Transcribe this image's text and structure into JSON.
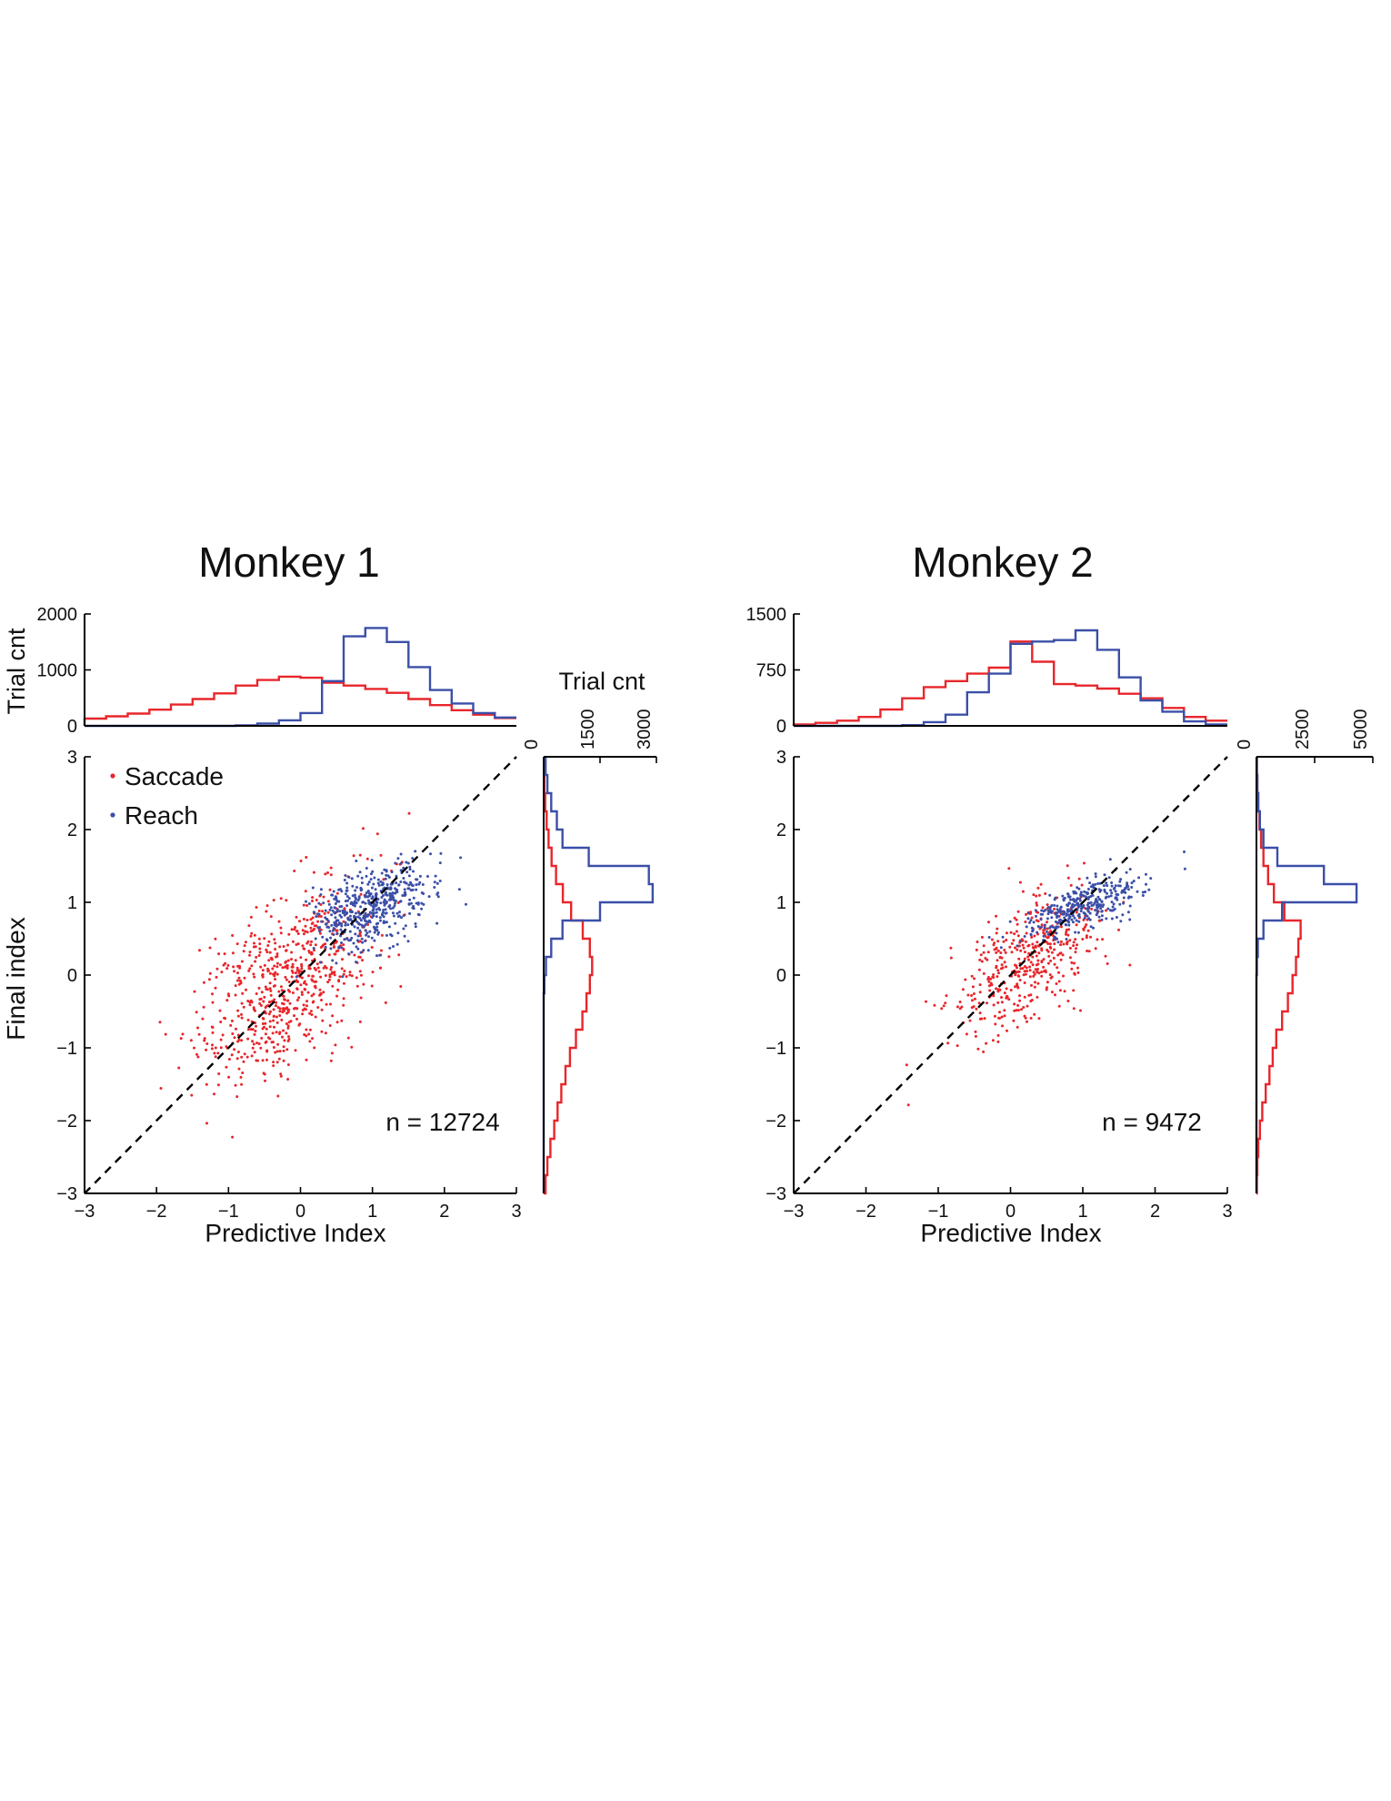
{
  "colors": {
    "saccade": "#e8262b",
    "reach": "#3b4fa8",
    "axis": "#000000",
    "diagonal": "#000000"
  },
  "panels": [
    {
      "title": "Monkey 1",
      "n_label": "n = 12724",
      "legend": [
        "Saccade",
        "Reach"
      ],
      "scatter_xlabel": "Predictive Index",
      "scatter_ylabel": "Final index",
      "top_hist_ylabel": "Trial cnt",
      "right_hist_label": "Trial cnt"
    },
    {
      "title": "Monkey 2",
      "n_label": "n = 9472",
      "legend": [],
      "scatter_xlabel": "Predictive Index",
      "scatter_ylabel": "",
      "top_hist_ylabel": "",
      "right_hist_label": ""
    }
  ],
  "chart_data": [
    {
      "type": "scatter",
      "title": "Monkey 1",
      "xlabel": "Predictive Index",
      "ylabel": "Final index",
      "xlim": [
        -3,
        3
      ],
      "ylim": [
        -3,
        3
      ],
      "xticks": [
        -3,
        -2,
        -1,
        0,
        1,
        2,
        3
      ],
      "yticks": [
        -3,
        -2,
        -1,
        0,
        1,
        2,
        3
      ],
      "annotation": "n = 12724",
      "diagonal": "y = x (dashed)",
      "legend_position": "top-left",
      "series": [
        {
          "name": "Saccade",
          "color": "#e8262b",
          "n_points": 700,
          "center": [
            -0.2,
            -0.1
          ],
          "spread": [
            1.15,
            0.95
          ]
        },
        {
          "name": "Reach",
          "color": "#3b4fa8",
          "n_points": 500,
          "center": [
            1.0,
            0.95
          ],
          "spread": [
            0.75,
            0.45
          ]
        }
      ],
      "top_histogram": {
        "ylabel": "Trial cnt",
        "ylim": [
          0,
          2000
        ],
        "yticks": [
          0,
          1000,
          2000
        ],
        "bin_edges": [
          -3,
          -2.7,
          -2.4,
          -2.1,
          -1.8,
          -1.5,
          -1.2,
          -0.9,
          -0.6,
          -0.3,
          0,
          0.3,
          0.6,
          0.9,
          1.2,
          1.5,
          1.8,
          2.1,
          2.4,
          2.7,
          3
        ],
        "series": [
          {
            "name": "Saccade",
            "counts": [
              130,
              170,
              220,
              290,
              380,
              480,
              580,
              720,
              820,
              880,
              860,
              770,
              720,
              660,
              590,
              480,
              370,
              280,
              200,
              140
            ]
          },
          {
            "name": "Reach",
            "counts": [
              0,
              0,
              0,
              0,
              0,
              0,
              0,
              10,
              40,
              100,
              230,
              800,
              1600,
              1750,
              1500,
              1050,
              640,
              400,
              230,
              150
            ]
          }
        ]
      },
      "right_histogram": {
        "xlabel": "Trial cnt",
        "xlim": [
          0,
          3000
        ],
        "xticks": [
          0,
          1500,
          3000
        ],
        "bin_edges": [
          -3,
          -2.75,
          -2.5,
          -2.25,
          -2,
          -1.75,
          -1.5,
          -1.25,
          -1,
          -0.75,
          -0.5,
          -0.25,
          0,
          0.25,
          0.5,
          0.75,
          1,
          1.25,
          1.5,
          1.75,
          2,
          2.25,
          2.5,
          2.75,
          3
        ],
        "series": [
          {
            "name": "Saccade",
            "counts": [
              50,
              100,
              180,
              280,
              370,
              470,
              580,
              700,
              860,
              1030,
              1140,
              1230,
              1290,
              1230,
              1040,
              730,
              510,
              330,
              210,
              130,
              80,
              40,
              20,
              10
            ]
          },
          {
            "name": "Reach",
            "counts": [
              0,
              0,
              0,
              0,
              0,
              0,
              0,
              0,
              0,
              0,
              0,
              20,
              60,
              200,
              500,
              1500,
              2900,
              2800,
              1200,
              500,
              350,
              200,
              100,
              50
            ]
          }
        ]
      }
    },
    {
      "type": "scatter",
      "title": "Monkey 2",
      "xlabel": "Predictive Index",
      "ylabel": "",
      "xlim": [
        -3,
        3
      ],
      "ylim": [
        -3,
        3
      ],
      "xticks": [
        -3,
        -2,
        -1,
        0,
        1,
        2,
        3
      ],
      "yticks": [
        -3,
        -2,
        -1,
        0,
        1,
        2,
        3
      ],
      "annotation": "n = 9472",
      "diagonal": "y = x (dashed)",
      "series": [
        {
          "name": "Saccade",
          "color": "#e8262b",
          "n_points": 450,
          "center": [
            0.2,
            0.15
          ],
          "spread": [
            0.9,
            0.65
          ]
        },
        {
          "name": "Reach",
          "color": "#3b4fa8",
          "n_points": 350,
          "center": [
            1.0,
            0.95
          ],
          "spread": [
            0.75,
            0.25
          ]
        }
      ],
      "top_histogram": {
        "ylabel": "",
        "ylim": [
          0,
          1500
        ],
        "yticks": [
          0,
          750,
          1500
        ],
        "bin_edges": [
          -3,
          -2.7,
          -2.4,
          -2.1,
          -1.8,
          -1.5,
          -1.2,
          -0.9,
          -0.6,
          -0.3,
          0,
          0.3,
          0.6,
          0.9,
          1.2,
          1.5,
          1.8,
          2.1,
          2.4,
          2.7,
          3
        ],
        "series": [
          {
            "name": "Saccade",
            "counts": [
              20,
              40,
              70,
              120,
              220,
              370,
              520,
              600,
              700,
              780,
              1130,
              860,
              560,
              540,
              500,
              430,
              370,
              240,
              120,
              70
            ]
          },
          {
            "name": "Reach",
            "counts": [
              0,
              0,
              0,
              0,
              0,
              10,
              50,
              150,
              450,
              700,
              1100,
              1130,
              1150,
              1280,
              1020,
              650,
              340,
              190,
              60,
              20
            ]
          }
        ]
      },
      "right_histogram": {
        "xlabel": "",
        "xlim": [
          0,
          5000
        ],
        "xticks": [
          0,
          2500,
          5000
        ],
        "bin_edges": [
          -3,
          -2.75,
          -2.5,
          -2.25,
          -2,
          -1.75,
          -1.5,
          -1.25,
          -1,
          -0.75,
          -0.5,
          -0.25,
          0,
          0.25,
          0.5,
          0.75,
          1,
          1.25,
          1.5,
          1.75,
          2,
          2.25,
          2.5,
          2.75,
          3
        ],
        "series": [
          {
            "name": "Saccade",
            "counts": [
              20,
              40,
              80,
              150,
              250,
              400,
              560,
              700,
              850,
              1100,
              1350,
              1550,
              1700,
              1800,
              1900,
              1200,
              750,
              500,
              300,
              200,
              130,
              80,
              40,
              20
            ]
          },
          {
            "name": "Reach",
            "counts": [
              0,
              0,
              0,
              0,
              0,
              0,
              0,
              0,
              0,
              0,
              0,
              0,
              20,
              60,
              300,
              1100,
              4300,
              2900,
              900,
              300,
              150,
              80,
              40,
              20
            ]
          }
        ]
      }
    }
  ]
}
